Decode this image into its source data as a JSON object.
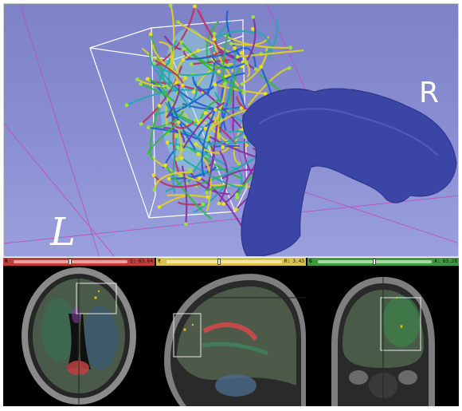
{
  "viewer3d": {
    "orientation_right": "R",
    "orientation_left": "L",
    "background": "#8a8fd3",
    "tract_colors": [
      "#e0d020",
      "#2dbb3a",
      "#1f5fd0",
      "#c0305a",
      "#20a8b0",
      "#8a2fa0"
    ],
    "vessel_color": "#3a45a5"
  },
  "slices": {
    "red": {
      "tag": "R",
      "value": "S: 63.64",
      "color": "#c23b3b",
      "thumb_fraction": 0.5
    },
    "yellow": {
      "tag": "Y",
      "value": "R: 3.43",
      "color": "#d9c24a",
      "thumb_fraction": 0.45
    },
    "green": {
      "tag": "G",
      "value": "A: 63.28",
      "color": "#3e9a3e",
      "thumb_fraction": 0.5
    }
  }
}
